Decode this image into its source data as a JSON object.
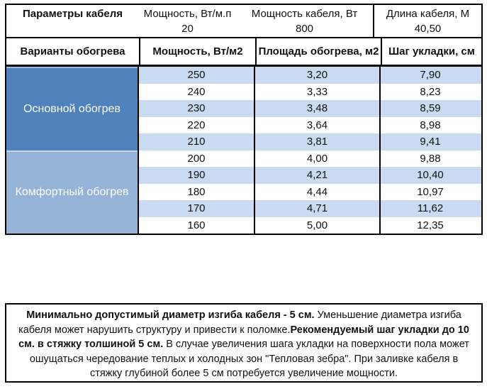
{
  "colors": {
    "group_main": "#4f81bd",
    "group_comfort": "#95b3d7",
    "row_band": "#c9daf1",
    "border": "#000000"
  },
  "params_header": {
    "title": "Параметры кабеля",
    "power_per_m_label": "Мощность, Вт/м.п",
    "power_per_m_value": "20",
    "cable_power_label": "Мощность кабеля, Вт",
    "cable_power_value": "800",
    "cable_length_label": "Длина кабеля, М",
    "cable_length_value": "40,50"
  },
  "table": {
    "headers": {
      "variants": "Варианты обогрева",
      "power": "Мощность, Вт/м2",
      "area": "Площадь обогрева, м2",
      "step": "Шаг укладки, см"
    },
    "groups": [
      {
        "label": "Основной обогрев"
      },
      {
        "label": "Комфортный обогрев"
      }
    ],
    "rows": [
      {
        "power": "250",
        "area": "3,20",
        "step": "7,90"
      },
      {
        "power": "240",
        "area": "3,33",
        "step": "8,23"
      },
      {
        "power": "230",
        "area": "3,48",
        "step": "8,59"
      },
      {
        "power": "220",
        "area": "3,64",
        "step": "8,98"
      },
      {
        "power": "210",
        "area": "3,81",
        "step": "9,41"
      },
      {
        "power": "200",
        "area": "4,00",
        "step": "9,88"
      },
      {
        "power": "190",
        "area": "4,21",
        "step": "10,40"
      },
      {
        "power": "180",
        "area": "4,44",
        "step": "10,97"
      },
      {
        "power": "170",
        "area": "4,71",
        "step": "11,62"
      },
      {
        "power": "160",
        "area": "5,00",
        "step": "12,35"
      }
    ]
  },
  "note": {
    "seg1_bold": "Минимально допустимый диаметр изгиба кабеля - 5 см.",
    "seg2": "  Уменьшение диаметра изгиба кабеля может нарушить структуру и привести к поломке.",
    "seg3_bold": "Рекомендуемый шаг укладки до 10 см. в стяжку толшиной 5 см.",
    "seg4": " В  случае увеличения шага укладки на поверхности пола может ошущаться чередование теплых и холодных зон \"Тепловая зебра\". При заливке кабеля в стяжку глубиной более 5 см потребуется увеличение мощности."
  }
}
